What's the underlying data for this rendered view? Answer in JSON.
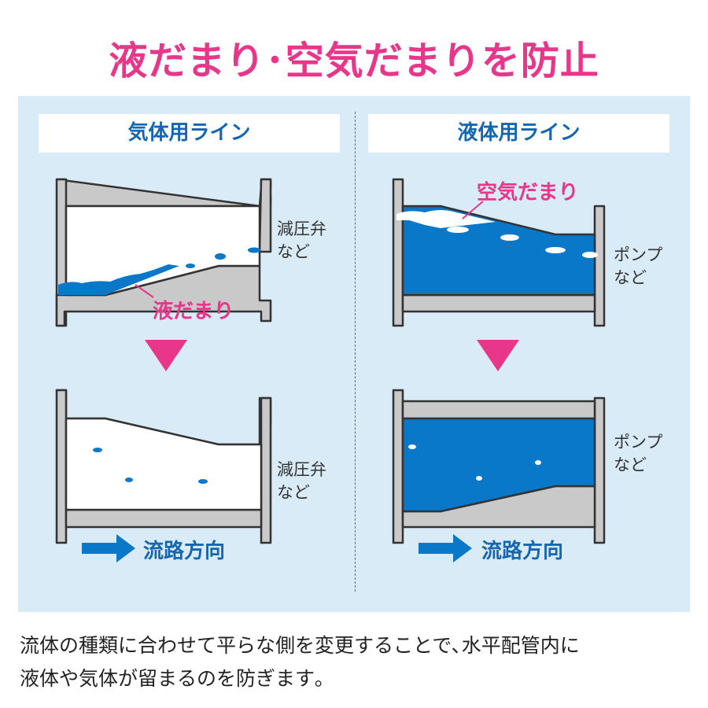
{
  "title": "液だまり･空気だまりを防止",
  "left": {
    "header": "気体用ライン",
    "device_line1": "減圧弁",
    "device_line2": "など",
    "pool_label": "液だまり"
  },
  "right": {
    "header": "液体用ライン",
    "device_line1": "ポンプ",
    "device_line2": "など",
    "pool_label": "空気だまり"
  },
  "flow_label": "流路方向",
  "caption_line1": "流体の種類に合わせて平らな側を変更することで､水平配管内に",
  "caption_line2": "液体や気体が留まるのを防ぎます｡",
  "colors": {
    "pink": "#e8368b",
    "blue": "#0a78c8",
    "panel": "#d9ebf6",
    "pipe_gray": "#c9c9c9"
  }
}
